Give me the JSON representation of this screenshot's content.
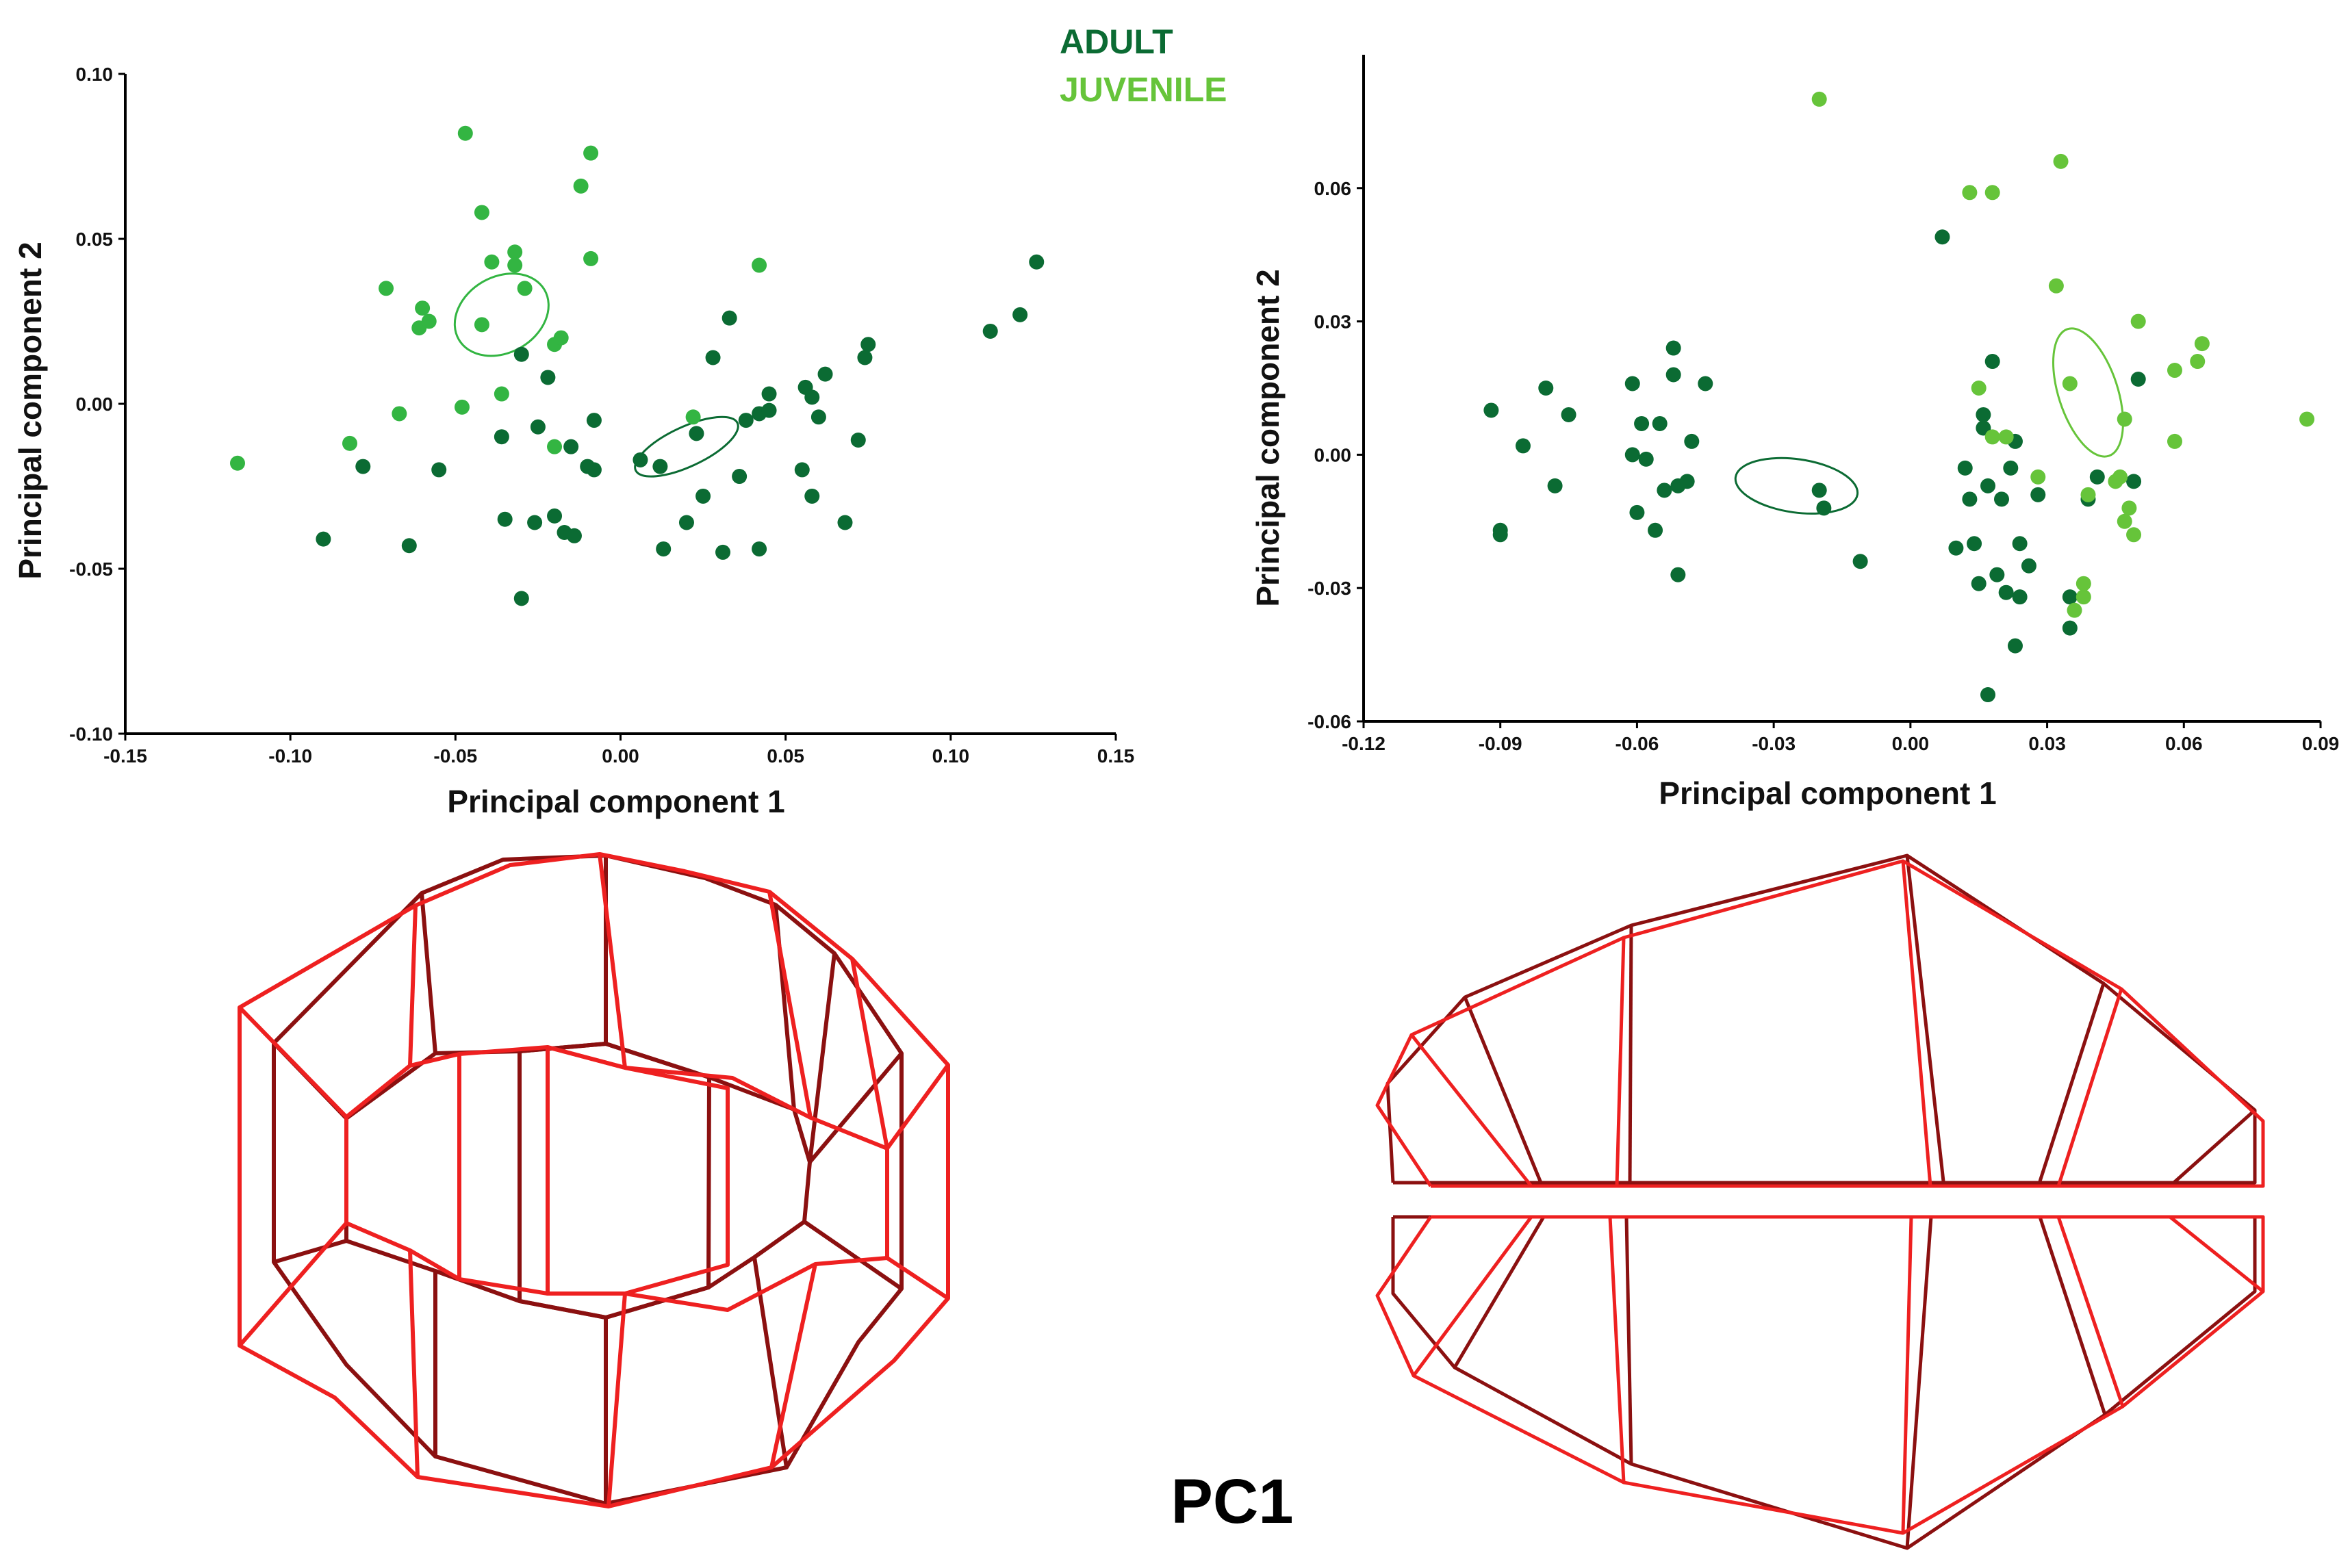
{
  "legend": {
    "adult_label": "ADULT",
    "juvenile_label": "JUVENILE",
    "adult_color": "#0b6b33",
    "juvenile_color": "#66c43a"
  },
  "pc_label": "PC1",
  "wireframe_colors": {
    "mean": "#8b1010",
    "target": "#ee2020"
  },
  "chart_data": [
    {
      "type": "scatter",
      "title": "",
      "xlabel": "Principal component 1",
      "ylabel": "Principal component 2",
      "xlim": [
        -0.15,
        0.15
      ],
      "ylim": [
        -0.1,
        0.1
      ],
      "xticks": [
        "-0.15",
        "-0.10",
        "-0.05",
        "0.00",
        "0.05",
        "0.10",
        "0.15"
      ],
      "xtick_values": [
        -0.15,
        -0.1,
        -0.05,
        0.0,
        0.05,
        0.1,
        0.15
      ],
      "yticks": [
        "-0.10",
        "-0.05",
        "0.00",
        "0.05",
        "0.10"
      ],
      "ytick_values": [
        -0.1,
        -0.05,
        0.0,
        0.05,
        0.1
      ],
      "series": [
        {
          "name": "ADULT",
          "color": "#0b6b33",
          "points": [
            [
              -0.09,
              -0.041
            ],
            [
              -0.064,
              -0.043
            ],
            [
              -0.078,
              -0.019
            ],
            [
              -0.055,
              -0.02
            ],
            [
              -0.035,
              -0.035
            ],
            [
              -0.03,
              -0.059
            ],
            [
              -0.026,
              -0.036
            ],
            [
              -0.02,
              -0.034
            ],
            [
              -0.017,
              -0.039
            ],
            [
              -0.014,
              -0.04
            ],
            [
              -0.036,
              -0.01
            ],
            [
              -0.025,
              -0.007
            ],
            [
              -0.015,
              -0.013
            ],
            [
              -0.01,
              -0.019
            ],
            [
              -0.008,
              -0.02
            ],
            [
              -0.022,
              0.008
            ],
            [
              -0.03,
              0.015
            ],
            [
              -0.008,
              -0.005
            ],
            [
              0.006,
              -0.017
            ],
            [
              0.012,
              -0.019
            ],
            [
              0.023,
              -0.009
            ],
            [
              0.013,
              -0.044
            ],
            [
              0.02,
              -0.036
            ],
            [
              0.025,
              -0.028
            ],
            [
              0.031,
              -0.045
            ],
            [
              0.036,
              -0.022
            ],
            [
              0.042,
              -0.044
            ],
            [
              0.038,
              -0.005
            ],
            [
              0.042,
              -0.003
            ],
            [
              0.045,
              -0.002
            ],
            [
              0.045,
              0.003
            ],
            [
              0.028,
              0.014
            ],
            [
              0.033,
              0.026
            ],
            [
              0.055,
              -0.02
            ],
            [
              0.058,
              -0.028
            ],
            [
              0.068,
              -0.036
            ],
            [
              0.072,
              -0.011
            ],
            [
              0.056,
              0.005
            ],
            [
              0.058,
              0.002
            ],
            [
              0.06,
              -0.004
            ],
            [
              0.062,
              0.009
            ],
            [
              0.074,
              0.014
            ],
            [
              0.075,
              0.018
            ],
            [
              0.112,
              0.022
            ],
            [
              0.121,
              0.027
            ],
            [
              0.126,
              0.043
            ]
          ],
          "ellipse": {
            "center": [
              0.02,
              -0.013
            ],
            "width": 0.034,
            "height": 0.012,
            "angle_deg": 25
          }
        },
        {
          "name": "JUVENILE",
          "color": "#33b542",
          "points": [
            [
              -0.116,
              -0.018
            ],
            [
              -0.082,
              -0.012
            ],
            [
              -0.071,
              0.035
            ],
            [
              -0.067,
              -0.003
            ],
            [
              -0.061,
              0.023
            ],
            [
              -0.06,
              0.029
            ],
            [
              -0.058,
              0.025
            ],
            [
              -0.048,
              -0.001
            ],
            [
              -0.047,
              0.082
            ],
            [
              -0.042,
              0.058
            ],
            [
              -0.042,
              0.024
            ],
            [
              -0.039,
              0.043
            ],
            [
              -0.036,
              0.003
            ],
            [
              -0.032,
              0.046
            ],
            [
              -0.032,
              0.042
            ],
            [
              -0.029,
              0.035
            ],
            [
              -0.02,
              -0.013
            ],
            [
              -0.02,
              0.018
            ],
            [
              -0.018,
              0.02
            ],
            [
              -0.012,
              0.066
            ],
            [
              -0.009,
              0.076
            ],
            [
              -0.009,
              0.044
            ],
            [
              0.022,
              -0.004
            ],
            [
              0.042,
              0.042
            ]
          ],
          "ellipse": {
            "center": [
              -0.036,
              0.027
            ],
            "width": 0.03,
            "height": 0.023,
            "angle_deg": 30
          }
        }
      ]
    },
    {
      "type": "scatter",
      "title": "",
      "xlabel": "Principal component 1",
      "ylabel": "Principal component 2",
      "xlim": [
        -0.12,
        0.09
      ],
      "ylim": [
        -0.06,
        0.09
      ],
      "xticks": [
        "-0.12",
        "-0.09",
        "-0.06",
        "-0.03",
        "0.00",
        "0.03",
        "0.06",
        "0.09"
      ],
      "xtick_values": [
        -0.12,
        -0.09,
        -0.06,
        -0.03,
        0.0,
        0.03,
        0.06,
        0.09
      ],
      "yticks": [
        "-0.06",
        "-0.03",
        "0.00",
        "0.03",
        "0.06"
      ],
      "ytick_values": [
        -0.06,
        -0.03,
        0.0,
        0.03,
        0.06
      ],
      "series": [
        {
          "name": "ADULT",
          "color": "#0b6b33",
          "points": [
            [
              -0.092,
              0.01
            ],
            [
              -0.09,
              -0.017
            ],
            [
              -0.09,
              -0.018
            ],
            [
              -0.085,
              0.002
            ],
            [
              -0.08,
              0.015
            ],
            [
              -0.078,
              -0.007
            ],
            [
              -0.075,
              0.009
            ],
            [
              -0.061,
              0.016
            ],
            [
              -0.061,
              0.0
            ],
            [
              -0.06,
              -0.013
            ],
            [
              -0.059,
              0.007
            ],
            [
              -0.058,
              -0.001
            ],
            [
              -0.056,
              -0.017
            ],
            [
              -0.055,
              0.007
            ],
            [
              -0.054,
              -0.008
            ],
            [
              -0.052,
              0.018
            ],
            [
              -0.052,
              0.024
            ],
            [
              -0.051,
              -0.007
            ],
            [
              -0.051,
              -0.027
            ],
            [
              -0.049,
              -0.006
            ],
            [
              -0.048,
              0.003
            ],
            [
              -0.045,
              0.016
            ],
            [
              -0.02,
              -0.008
            ],
            [
              -0.019,
              -0.012
            ],
            [
              -0.011,
              -0.024
            ],
            [
              0.007,
              0.049
            ],
            [
              0.01,
              -0.021
            ],
            [
              0.012,
              -0.003
            ],
            [
              0.013,
              -0.01
            ],
            [
              0.014,
              -0.02
            ],
            [
              0.015,
              -0.029
            ],
            [
              0.016,
              0.006
            ],
            [
              0.016,
              0.009
            ],
            [
              0.017,
              -0.007
            ],
            [
              0.017,
              -0.054
            ],
            [
              0.018,
              0.021
            ],
            [
              0.019,
              -0.027
            ],
            [
              0.02,
              -0.01
            ],
            [
              0.021,
              -0.031
            ],
            [
              0.022,
              -0.003
            ],
            [
              0.023,
              0.003
            ],
            [
              0.023,
              -0.043
            ],
            [
              0.024,
              -0.02
            ],
            [
              0.024,
              -0.032
            ],
            [
              0.026,
              -0.025
            ],
            [
              0.028,
              -0.009
            ],
            [
              0.035,
              -0.032
            ],
            [
              0.035,
              -0.039
            ],
            [
              0.039,
              -0.01
            ],
            [
              0.041,
              -0.005
            ],
            [
              0.049,
              -0.006
            ],
            [
              0.05,
              0.017
            ]
          ],
          "ellipse": {
            "center": [
              -0.025,
              -0.007
            ],
            "width": 0.027,
            "height": 0.012,
            "angle_deg": -8
          }
        },
        {
          "name": "JUVENILE",
          "color": "#66c43a",
          "points": [
            [
              -0.02,
              0.08
            ],
            [
              0.013,
              0.059
            ],
            [
              0.015,
              0.015
            ],
            [
              0.018,
              0.004
            ],
            [
              0.018,
              0.059
            ],
            [
              0.021,
              0.004
            ],
            [
              0.028,
              -0.005
            ],
            [
              0.032,
              0.038
            ],
            [
              0.033,
              0.066
            ],
            [
              0.035,
              0.016
            ],
            [
              0.036,
              -0.035
            ],
            [
              0.038,
              -0.032
            ],
            [
              0.038,
              -0.029
            ],
            [
              0.039,
              -0.009
            ],
            [
              0.045,
              -0.006
            ],
            [
              0.046,
              -0.005
            ],
            [
              0.047,
              0.008
            ],
            [
              0.047,
              -0.015
            ],
            [
              0.048,
              -0.012
            ],
            [
              0.049,
              -0.018
            ],
            [
              0.05,
              0.03
            ],
            [
              0.058,
              0.003
            ],
            [
              0.058,
              0.019
            ],
            [
              0.063,
              0.021
            ],
            [
              0.064,
              0.025
            ],
            [
              0.087,
              0.008
            ]
          ],
          "ellipse": {
            "center": [
              0.039,
              0.014
            ],
            "width": 0.013,
            "height": 0.03,
            "angle_deg": 18
          }
        }
      ]
    }
  ]
}
